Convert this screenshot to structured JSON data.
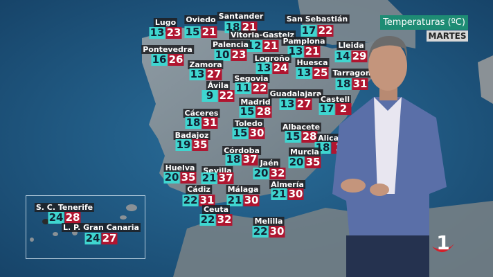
{
  "header": {
    "title": "Temperaturas (ºC)",
    "day": "MARTES"
  },
  "colors": {
    "min_bg": "#3fd6d0",
    "max_bg": "#b01530",
    "title_bg": "#1e8c74",
    "sea": "#1d5a86",
    "land": "#8a9196"
  },
  "logo": {
    "text": "1",
    "icon": "tve-la1-logo"
  },
  "cities": [
    {
      "name": "Lugo",
      "min": "13",
      "max": "23"
    },
    {
      "name": "Oviedo",
      "min": "15",
      "max": "21"
    },
    {
      "name": "Santander",
      "min": "18",
      "max": "21"
    },
    {
      "name": "San Sebastián",
      "min": "17",
      "max": "22"
    },
    {
      "name": "Vitoria-Gasteiz",
      "min": "12",
      "max": "21"
    },
    {
      "name": "Palencia",
      "min": "10",
      "max": "23"
    },
    {
      "name": "Pontevedra",
      "min": "16",
      "max": "26"
    },
    {
      "name": "Pamplona",
      "min": "13",
      "max": "21"
    },
    {
      "name": "Lleida",
      "min": "14",
      "max": "29"
    },
    {
      "name": "Zamora",
      "min": "13",
      "max": "27"
    },
    {
      "name": "Logroño",
      "min": "13",
      "max": "24"
    },
    {
      "name": "Huesca",
      "min": "13",
      "max": "25"
    },
    {
      "name": "Tarragon",
      "min": "18",
      "max": "31"
    },
    {
      "name": "Segovia",
      "min": "11",
      "max": "22"
    },
    {
      "name": "Ávila",
      "min": "9",
      "max": "22"
    },
    {
      "name": "Guadalajara",
      "min": "13",
      "max": "27"
    },
    {
      "name": "Castell",
      "min": "17",
      "max": "2"
    },
    {
      "name": "Madrid",
      "min": "15",
      "max": "28"
    },
    {
      "name": "Cáceres",
      "min": "18",
      "max": "31"
    },
    {
      "name": "Toledo",
      "min": "15",
      "max": "30"
    },
    {
      "name": "Albacete",
      "min": "15",
      "max": "28"
    },
    {
      "name": "Alican",
      "min": "18",
      "max": "3"
    },
    {
      "name": "Badajoz",
      "min": "19",
      "max": "35"
    },
    {
      "name": "Córdoba",
      "min": "18",
      "max": "37"
    },
    {
      "name": "Murcia",
      "min": "20",
      "max": "35"
    },
    {
      "name": "Jaén",
      "min": "20",
      "max": "32"
    },
    {
      "name": "Huelva",
      "min": "20",
      "max": "35"
    },
    {
      "name": "Sevilla",
      "min": "21",
      "max": "37"
    },
    {
      "name": "Almería",
      "min": "21",
      "max": "30"
    },
    {
      "name": "Cádiz",
      "min": "22",
      "max": "31"
    },
    {
      "name": "Málaga",
      "min": "21",
      "max": "30"
    },
    {
      "name": "Ceuta",
      "min": "22",
      "max": "32"
    },
    {
      "name": "Melilla",
      "min": "22",
      "max": "30"
    },
    {
      "name": "S. C. Tenerife",
      "min": "24",
      "max": "28"
    },
    {
      "name": "L. P. Gran Canaria",
      "min": "24",
      "max": "27"
    }
  ]
}
